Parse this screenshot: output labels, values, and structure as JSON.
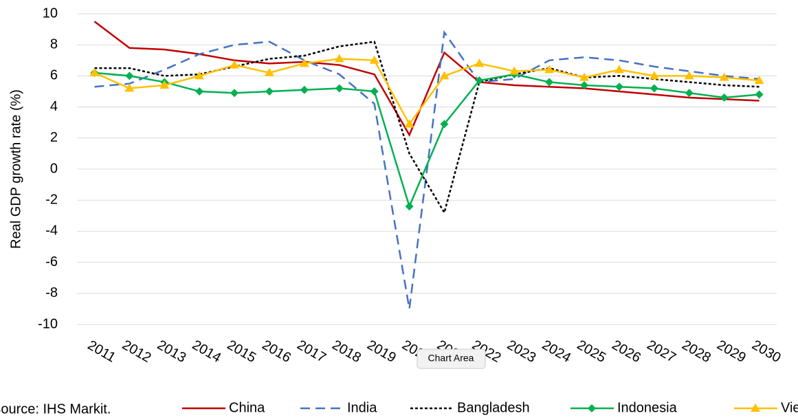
{
  "chart_data": {
    "type": "line",
    "y_label": "Real GDP growth rate (%)",
    "source": "Source: IHS Markit.",
    "categories": [
      "2011",
      "2012",
      "2013",
      "2014",
      "2015",
      "2016",
      "2017",
      "2018",
      "2019",
      "2020",
      "2021",
      "2022",
      "2023",
      "2024",
      "2025",
      "2026",
      "2027",
      "2028",
      "2029",
      "2030"
    ],
    "series": [
      {
        "name": "China",
        "color": "#c00000",
        "dash": "solid",
        "marker": "none",
        "values": [
          9.5,
          7.8,
          7.7,
          7.4,
          7.0,
          6.8,
          6.9,
          6.7,
          6.1,
          2.2,
          7.5,
          5.6,
          5.4,
          5.3,
          5.2,
          5.0,
          4.8,
          4.6,
          4.5,
          4.4
        ]
      },
      {
        "name": "India",
        "color": "#4472c4",
        "dash": "long",
        "marker": "none",
        "values": [
          5.3,
          5.5,
          6.4,
          7.4,
          8.0,
          8.2,
          7.0,
          6.1,
          4.2,
          -9.0,
          8.8,
          5.6,
          5.8,
          7.0,
          7.2,
          7.0,
          6.6,
          6.3,
          6.0,
          5.8
        ]
      },
      {
        "name": "Bangladesh",
        "color": "#000000",
        "dash": "short",
        "marker": "none",
        "values": [
          6.5,
          6.5,
          6.0,
          6.1,
          6.6,
          7.1,
          7.3,
          7.9,
          8.2,
          1.0,
          -2.8,
          5.6,
          6.1,
          6.5,
          5.9,
          6.0,
          5.8,
          5.6,
          5.4,
          5.3
        ]
      },
      {
        "name": "Indonesia",
        "color": "#00b050",
        "dash": "solid",
        "marker": "diamond",
        "values": [
          6.2,
          6.0,
          5.6,
          5.0,
          4.9,
          5.0,
          5.1,
          5.2,
          5.0,
          -2.4,
          2.9,
          5.7,
          6.1,
          5.6,
          5.4,
          5.3,
          5.2,
          4.9,
          4.6,
          4.8
        ]
      },
      {
        "name": "Vietnam",
        "color": "#ffc000",
        "dash": "solid",
        "marker": "triangle",
        "values": [
          6.2,
          5.2,
          5.4,
          6.0,
          6.7,
          6.2,
          6.8,
          7.1,
          7.0,
          2.9,
          6.0,
          6.8,
          6.3,
          6.4,
          5.9,
          6.4,
          6.0,
          6.0,
          5.9,
          5.7
        ]
      }
    ],
    "ylim": [
      -10,
      10
    ],
    "yticks": [
      -10,
      -8,
      -6,
      -4,
      -2,
      0,
      2,
      4,
      6,
      8,
      10
    ],
    "grid": true,
    "legend": "bottom"
  },
  "tooltip": "Chart Area"
}
